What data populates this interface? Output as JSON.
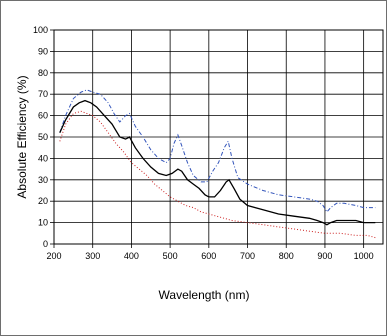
{
  "chart_data": {
    "type": "line",
    "title": "",
    "xlabel": "Wavelength (nm)",
    "ylabel": "Absolute Efficiency (%)",
    "xlim": [
      200,
      1050
    ],
    "ylim": [
      0,
      100
    ],
    "xticks": [
      200,
      300,
      400,
      500,
      600,
      700,
      800,
      900,
      1000
    ],
    "yticks": [
      0,
      10,
      20,
      30,
      40,
      50,
      60,
      70,
      80,
      90,
      100
    ],
    "grid": true,
    "legend": "none",
    "series": [
      {
        "color": "#3355bb",
        "style": "dash-dot",
        "points": [
          [
            215,
            52
          ],
          [
            230,
            60
          ],
          [
            250,
            68
          ],
          [
            270,
            71
          ],
          [
            285,
            72
          ],
          [
            300,
            71
          ],
          [
            320,
            70
          ],
          [
            340,
            66
          ],
          [
            355,
            61
          ],
          [
            370,
            57
          ],
          [
            385,
            60
          ],
          [
            395,
            61
          ],
          [
            410,
            55
          ],
          [
            430,
            50
          ],
          [
            450,
            44
          ],
          [
            470,
            40
          ],
          [
            490,
            38
          ],
          [
            500,
            40
          ],
          [
            510,
            47
          ],
          [
            520,
            51
          ],
          [
            530,
            46
          ],
          [
            545,
            38
          ],
          [
            560,
            32
          ],
          [
            580,
            29
          ],
          [
            595,
            29
          ],
          [
            610,
            34
          ],
          [
            625,
            38
          ],
          [
            640,
            45
          ],
          [
            650,
            48
          ],
          [
            660,
            40
          ],
          [
            675,
            31
          ],
          [
            700,
            28
          ],
          [
            740,
            25
          ],
          [
            780,
            23
          ],
          [
            820,
            22
          ],
          [
            860,
            21
          ],
          [
            880,
            20
          ],
          [
            895,
            18
          ],
          [
            905,
            15
          ],
          [
            915,
            17
          ],
          [
            930,
            19
          ],
          [
            950,
            19
          ],
          [
            980,
            18
          ],
          [
            1000,
            17
          ],
          [
            1030,
            17
          ]
        ]
      },
      {
        "color": "#000000",
        "style": "solid",
        "points": [
          [
            215,
            52
          ],
          [
            230,
            58
          ],
          [
            250,
            64
          ],
          [
            265,
            66
          ],
          [
            280,
            67
          ],
          [
            295,
            66
          ],
          [
            310,
            64
          ],
          [
            330,
            60
          ],
          [
            350,
            56
          ],
          [
            370,
            50
          ],
          [
            385,
            49
          ],
          [
            395,
            50
          ],
          [
            410,
            45
          ],
          [
            430,
            40
          ],
          [
            450,
            36
          ],
          [
            470,
            33
          ],
          [
            490,
            32
          ],
          [
            505,
            33
          ],
          [
            520,
            35
          ],
          [
            530,
            34
          ],
          [
            545,
            30
          ],
          [
            560,
            28
          ],
          [
            575,
            26
          ],
          [
            590,
            23
          ],
          [
            600,
            22
          ],
          [
            615,
            22
          ],
          [
            630,
            25
          ],
          [
            645,
            29
          ],
          [
            652,
            30
          ],
          [
            665,
            26
          ],
          [
            680,
            21
          ],
          [
            700,
            18
          ],
          [
            740,
            16
          ],
          [
            780,
            14
          ],
          [
            820,
            13
          ],
          [
            860,
            12
          ],
          [
            880,
            11
          ],
          [
            895,
            10
          ],
          [
            905,
            9
          ],
          [
            915,
            10
          ],
          [
            930,
            11
          ],
          [
            950,
            11
          ],
          [
            980,
            11
          ],
          [
            1000,
            10
          ],
          [
            1030,
            10
          ]
        ]
      },
      {
        "color": "#cc2222",
        "style": "dotted",
        "points": [
          [
            215,
            48
          ],
          [
            230,
            56
          ],
          [
            250,
            61
          ],
          [
            270,
            62
          ],
          [
            285,
            61
          ],
          [
            300,
            60
          ],
          [
            320,
            57
          ],
          [
            340,
            52
          ],
          [
            360,
            47
          ],
          [
            380,
            43
          ],
          [
            400,
            38
          ],
          [
            420,
            35
          ],
          [
            440,
            32
          ],
          [
            460,
            28
          ],
          [
            480,
            25
          ],
          [
            500,
            22
          ],
          [
            520,
            20
          ],
          [
            540,
            18
          ],
          [
            560,
            17
          ],
          [
            580,
            15
          ],
          [
            600,
            14
          ],
          [
            620,
            13
          ],
          [
            640,
            12
          ],
          [
            660,
            11
          ],
          [
            700,
            10
          ],
          [
            740,
            9
          ],
          [
            780,
            8
          ],
          [
            820,
            7
          ],
          [
            860,
            6
          ],
          [
            900,
            5
          ],
          [
            940,
            5
          ],
          [
            980,
            4
          ],
          [
            1010,
            4
          ],
          [
            1030,
            3
          ]
        ]
      }
    ]
  }
}
